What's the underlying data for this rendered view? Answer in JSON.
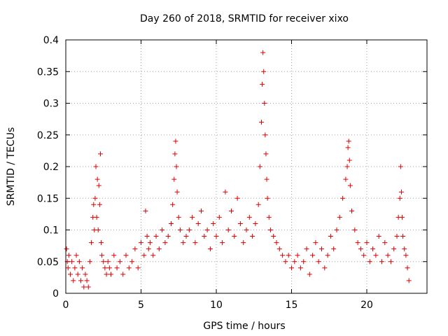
{
  "chart_data": {
    "type": "scatter",
    "title": "Day 260 of 2018, SRMTID for receiver xixo",
    "xlabel": "GPS time / hours",
    "ylabel": "SRMTID / TECUs",
    "xlim": [
      0,
      24
    ],
    "ylim": [
      0,
      0.4
    ],
    "x_ticks": [
      0,
      5,
      10,
      15,
      20
    ],
    "x_tick_labels": [
      "0",
      "5",
      "10",
      "15",
      "20"
    ],
    "y_ticks": [
      0,
      0.05,
      0.1,
      0.15,
      0.2,
      0.25,
      0.3,
      0.35,
      0.4
    ],
    "y_tick_labels": [
      "0",
      "0.05",
      "0.1",
      "0.15",
      "0.2",
      "0.25",
      "0.3",
      "0.35",
      "0.4"
    ],
    "grid": true,
    "marker": "plus",
    "colors": {
      "points": "#e00000",
      "grid": "#a0a0a0",
      "axis": "#000000"
    },
    "series": [
      {
        "name": "SRMTID",
        "x": [
          0.05,
          0.1,
          0.15,
          0.2,
          0.3,
          0.4,
          0.5,
          0.6,
          0.7,
          0.8,
          0.9,
          1.0,
          1.1,
          1.2,
          1.3,
          1.4,
          1.5,
          1.6,
          1.7,
          1.8,
          1.85,
          1.9,
          1.95,
          2.0,
          2.05,
          2.1,
          2.15,
          2.2,
          2.25,
          2.3,
          2.35,
          2.4,
          2.5,
          2.6,
          2.7,
          2.8,
          2.9,
          3.0,
          3.2,
          3.4,
          3.6,
          3.8,
          4.0,
          4.2,
          4.4,
          4.6,
          4.8,
          5.0,
          5.2,
          5.3,
          5.4,
          5.5,
          5.6,
          5.8,
          6.0,
          6.2,
          6.4,
          6.6,
          6.8,
          7.0,
          7.1,
          7.2,
          7.25,
          7.3,
          7.35,
          7.4,
          7.5,
          7.6,
          7.8,
          8.0,
          8.2,
          8.4,
          8.6,
          8.8,
          9.0,
          9.2,
          9.4,
          9.6,
          9.8,
          10.0,
          10.2,
          10.4,
          10.6,
          10.8,
          11.0,
          11.2,
          11.4,
          11.6,
          11.8,
          12.0,
          12.2,
          12.4,
          12.6,
          12.8,
          12.9,
          13.0,
          13.05,
          13.1,
          13.15,
          13.2,
          13.25,
          13.3,
          13.35,
          13.4,
          13.5,
          13.6,
          13.8,
          14.0,
          14.2,
          14.4,
          14.6,
          14.8,
          15.0,
          15.2,
          15.4,
          15.6,
          15.8,
          16.0,
          16.2,
          16.4,
          16.6,
          16.8,
          17.0,
          17.2,
          17.4,
          17.6,
          17.8,
          18.0,
          18.2,
          18.4,
          18.6,
          18.7,
          18.75,
          18.8,
          18.85,
          18.9,
          19.0,
          19.2,
          19.4,
          19.6,
          19.8,
          20.0,
          20.2,
          20.4,
          20.6,
          20.8,
          21.0,
          21.2,
          21.4,
          21.6,
          21.8,
          22.0,
          22.1,
          22.2,
          22.25,
          22.3,
          22.35,
          22.4,
          22.5,
          22.6,
          22.7,
          22.8
        ],
        "y": [
          0.07,
          0.05,
          0.04,
          0.06,
          0.03,
          0.05,
          0.02,
          0.04,
          0.06,
          0.03,
          0.05,
          0.02,
          0.04,
          0.01,
          0.03,
          0.02,
          0.01,
          0.05,
          0.08,
          0.12,
          0.14,
          0.1,
          0.15,
          0.2,
          0.12,
          0.18,
          0.1,
          0.17,
          0.14,
          0.22,
          0.08,
          0.06,
          0.05,
          0.04,
          0.03,
          0.05,
          0.04,
          0.03,
          0.06,
          0.04,
          0.05,
          0.03,
          0.06,
          0.04,
          0.05,
          0.07,
          0.04,
          0.08,
          0.06,
          0.13,
          0.09,
          0.07,
          0.08,
          0.06,
          0.09,
          0.07,
          0.1,
          0.08,
          0.09,
          0.11,
          0.14,
          0.18,
          0.22,
          0.24,
          0.2,
          0.16,
          0.12,
          0.1,
          0.08,
          0.09,
          0.1,
          0.12,
          0.08,
          0.11,
          0.13,
          0.09,
          0.1,
          0.07,
          0.11,
          0.09,
          0.12,
          0.08,
          0.16,
          0.1,
          0.13,
          0.09,
          0.15,
          0.11,
          0.08,
          0.1,
          0.12,
          0.09,
          0.11,
          0.14,
          0.2,
          0.27,
          0.33,
          0.38,
          0.35,
          0.3,
          0.25,
          0.22,
          0.18,
          0.15,
          0.12,
          0.1,
          0.09,
          0.08,
          0.07,
          0.06,
          0.05,
          0.06,
          0.04,
          0.05,
          0.06,
          0.04,
          0.05,
          0.07,
          0.03,
          0.06,
          0.08,
          0.05,
          0.07,
          0.04,
          0.06,
          0.09,
          0.07,
          0.1,
          0.12,
          0.15,
          0.18,
          0.2,
          0.23,
          0.24,
          0.21,
          0.17,
          0.13,
          0.1,
          0.08,
          0.07,
          0.06,
          0.08,
          0.05,
          0.07,
          0.06,
          0.09,
          0.05,
          0.08,
          0.06,
          0.05,
          0.07,
          0.09,
          0.12,
          0.15,
          0.2,
          0.16,
          0.12,
          0.09,
          0.07,
          0.06,
          0.04,
          0.02
        ]
      }
    ]
  }
}
